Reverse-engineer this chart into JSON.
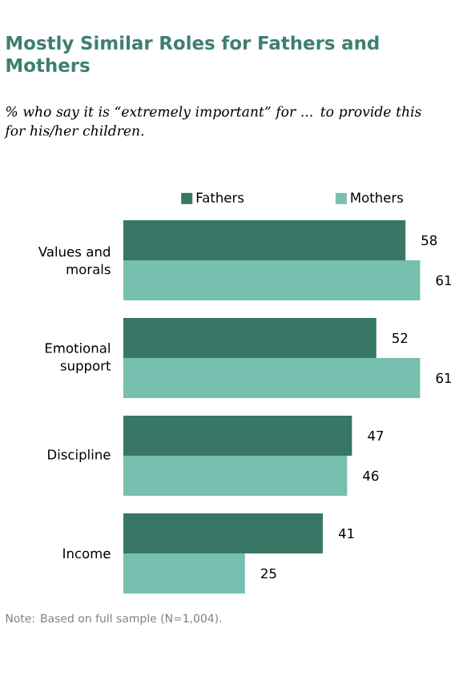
{
  "chart_data": {
    "type": "bar",
    "orientation": "horizontal",
    "title": "Mostly Similar Roles for Fathers and Mothers",
    "subtitle": "% who say it is “extremely important” for ... to provide this for his/her children.",
    "categories": [
      "Values and morals",
      "Emotional support",
      "Discipline",
      "Income"
    ],
    "series": [
      {
        "name": "Fathers",
        "color": "#387766",
        "values": [
          58,
          52,
          47,
          41
        ]
      },
      {
        "name": "Mothers",
        "color": "#77bfae",
        "values": [
          61,
          61,
          46,
          25
        ]
      }
    ],
    "data_labels": true,
    "legend": "top",
    "annotations": [
      "Note: Based on full sample (N=1,004)."
    ]
  }
}
